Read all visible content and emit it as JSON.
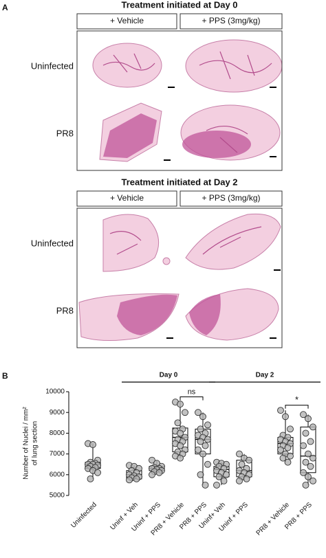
{
  "panel_a": {
    "label": "A",
    "blocks": [
      {
        "title": "Treatment initiated at Day 0",
        "columns": [
          "+ Vehicle",
          "+ PPS (3mg/kg)"
        ],
        "rows": [
          "Uninfected",
          "PR8"
        ]
      },
      {
        "title": "Treatment initiated at Day 2",
        "columns": [
          "+ Vehicle",
          "+ PPS (3mg/kg)"
        ],
        "rows": [
          "Uninfected",
          "PR8"
        ]
      }
    ]
  },
  "panel_b": {
    "label": "B"
  },
  "chart_data": {
    "type": "box",
    "ylabel": [
      "Number of Nuclei / mm²",
      "of lung section"
    ],
    "categories": [
      "Uninfected",
      "Uninf + Veh",
      "Uninf + PPS",
      "PR8 + Vehicle",
      "PR8 + PPS",
      "Uninf+ Veh",
      "Uninf + PPS",
      "PR8 + Vehicle",
      "PR8 + PPS"
    ],
    "groups": [
      "Day 0",
      "Day 2"
    ],
    "annotations": [
      "ns",
      "*"
    ],
    "ylim": [
      5000,
      10000
    ],
    "yticks": [
      5000,
      6000,
      7000,
      8000,
      9000,
      10000
    ],
    "boxes": [
      {
        "min": 5800,
        "q1": 6300,
        "median": 6500,
        "q3": 6600,
        "max": 7500
      },
      {
        "min": 5750,
        "q1": 5800,
        "median": 6000,
        "q3": 6200,
        "max": 6450
      },
      {
        "min": 6000,
        "q1": 6200,
        "median": 6300,
        "q3": 6400,
        "max": 6700
      },
      {
        "min": 6800,
        "q1": 7100,
        "median": 7800,
        "q3": 8250,
        "max": 9500
      },
      {
        "min": 5500,
        "q1": 7000,
        "median": 7700,
        "q3": 8200,
        "max": 9000
      },
      {
        "min": 5500,
        "q1": 5900,
        "median": 6250,
        "q3": 6400,
        "max": 6600
      },
      {
        "min": 5700,
        "q1": 5900,
        "median": 6200,
        "q3": 6700,
        "max": 7000
      },
      {
        "min": 6600,
        "q1": 7000,
        "median": 7500,
        "q3": 7800,
        "max": 9100
      },
      {
        "min": 5500,
        "q1": 6100,
        "median": 6900,
        "q3": 8300,
        "max": 8900
      }
    ],
    "points": [
      [
        7500,
        7450,
        6700,
        6600,
        6550,
        6500,
        6500,
        6450,
        6400,
        6350,
        6300,
        6200,
        6100,
        5800
      ],
      [
        6450,
        6400,
        6300,
        6200,
        6100,
        6000,
        5950,
        5900,
        5850,
        5800,
        5750
      ],
      [
        6700,
        6550,
        6400,
        6350,
        6300,
        6300,
        6250,
        6200,
        6150,
        6100,
        6000
      ],
      [
        9500,
        9400,
        9000,
        8500,
        8200,
        8100,
        8000,
        7800,
        7700,
        7600,
        7500,
        7400,
        7200,
        7100,
        7000,
        6900,
        6800
      ],
      [
        9000,
        8800,
        8400,
        8200,
        8000,
        7900,
        7800,
        7700,
        7600,
        7400,
        7200,
        7000,
        6500,
        6000,
        5500
      ],
      [
        6600,
        6550,
        6500,
        6400,
        6300,
        6200,
        6100,
        6000,
        5900,
        5700,
        5500
      ],
      [
        7000,
        6800,
        6700,
        6500,
        6300,
        6200,
        6100,
        6000,
        5900,
        5800,
        5700
      ],
      [
        9100,
        8800,
        8200,
        7900,
        7800,
        7700,
        7600,
        7500,
        7400,
        7300,
        7200,
        7000,
        6900,
        6800,
        6600
      ],
      [
        8900,
        8700,
        8300,
        8000,
        7600,
        7400,
        7000,
        6800,
        6600,
        6400,
        6100,
        5900,
        5700,
        5500
      ]
    ]
  }
}
